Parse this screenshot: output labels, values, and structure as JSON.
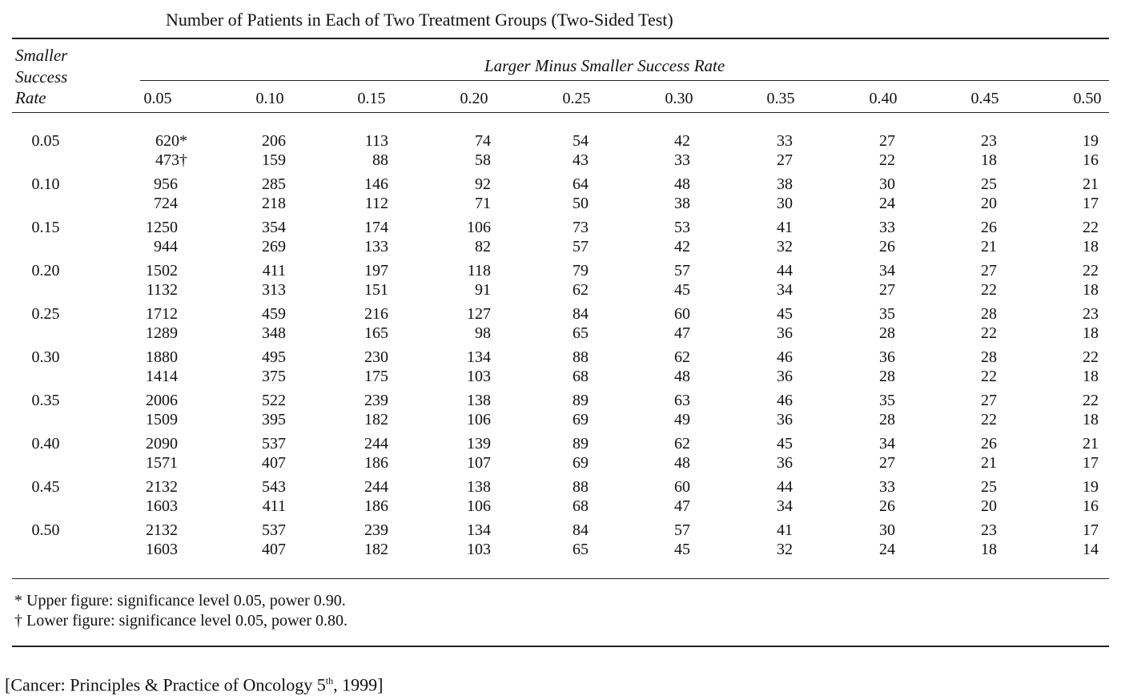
{
  "title": "Number of Patients in Each of Two Treatment Groups (Two-Sided Test)",
  "stub_header": "Smaller Success Rate",
  "spanner": "Larger Minus Smaller Success Rate",
  "columns": [
    "0.05",
    "0.10",
    "0.15",
    "0.20",
    "0.25",
    "0.30",
    "0.35",
    "0.40",
    "0.45",
    "0.50"
  ],
  "rows": [
    {
      "label": "0.05",
      "upper": [
        "620*",
        206,
        113,
        74,
        54,
        42,
        33,
        27,
        23,
        19
      ],
      "lower": [
        "473†",
        159,
        88,
        58,
        43,
        33,
        27,
        22,
        18,
        16
      ]
    },
    {
      "label": "0.10",
      "upper": [
        956,
        285,
        146,
        92,
        64,
        48,
        38,
        30,
        25,
        21
      ],
      "lower": [
        724,
        218,
        112,
        71,
        50,
        38,
        30,
        24,
        20,
        17
      ]
    },
    {
      "label": "0.15",
      "upper": [
        1250,
        354,
        174,
        106,
        73,
        53,
        41,
        33,
        26,
        22
      ],
      "lower": [
        944,
        269,
        133,
        82,
        57,
        42,
        32,
        26,
        21,
        18
      ]
    },
    {
      "label": "0.20",
      "upper": [
        1502,
        411,
        197,
        118,
        79,
        57,
        44,
        34,
        27,
        22
      ],
      "lower": [
        1132,
        313,
        151,
        91,
        62,
        45,
        34,
        27,
        22,
        18
      ]
    },
    {
      "label": "0.25",
      "upper": [
        1712,
        459,
        216,
        127,
        84,
        60,
        45,
        35,
        28,
        23
      ],
      "lower": [
        1289,
        348,
        165,
        98,
        65,
        47,
        36,
        28,
        22,
        18
      ]
    },
    {
      "label": "0.30",
      "upper": [
        1880,
        495,
        230,
        134,
        88,
        62,
        46,
        36,
        28,
        22
      ],
      "lower": [
        1414,
        375,
        175,
        103,
        68,
        48,
        36,
        28,
        22,
        18
      ]
    },
    {
      "label": "0.35",
      "upper": [
        2006,
        522,
        239,
        138,
        89,
        63,
        46,
        35,
        27,
        22
      ],
      "lower": [
        1509,
        395,
        182,
        106,
        69,
        49,
        36,
        28,
        22,
        18
      ]
    },
    {
      "label": "0.40",
      "upper": [
        2090,
        537,
        244,
        139,
        89,
        62,
        45,
        34,
        26,
        21
      ],
      "lower": [
        1571,
        407,
        186,
        107,
        69,
        48,
        36,
        27,
        21,
        17
      ]
    },
    {
      "label": "0.45",
      "upper": [
        2132,
        543,
        244,
        138,
        88,
        60,
        44,
        33,
        25,
        19
      ],
      "lower": [
        1603,
        411,
        186,
        106,
        68,
        47,
        34,
        26,
        20,
        16
      ]
    },
    {
      "label": "0.50",
      "upper": [
        2132,
        537,
        239,
        134,
        84,
        57,
        41,
        30,
        23,
        17
      ],
      "lower": [
        1603,
        407,
        182,
        103,
        65,
        45,
        32,
        24,
        18,
        14
      ]
    }
  ],
  "footnotes": [
    "* Upper figure: significance level 0.05, power 0.90.",
    "† Lower figure: significance level 0.05, power 0.80."
  ],
  "citation": {
    "text": "[Cancer: Principles & Practice of Oncology 5",
    "sup": "th",
    "tail": ", 1999]"
  }
}
